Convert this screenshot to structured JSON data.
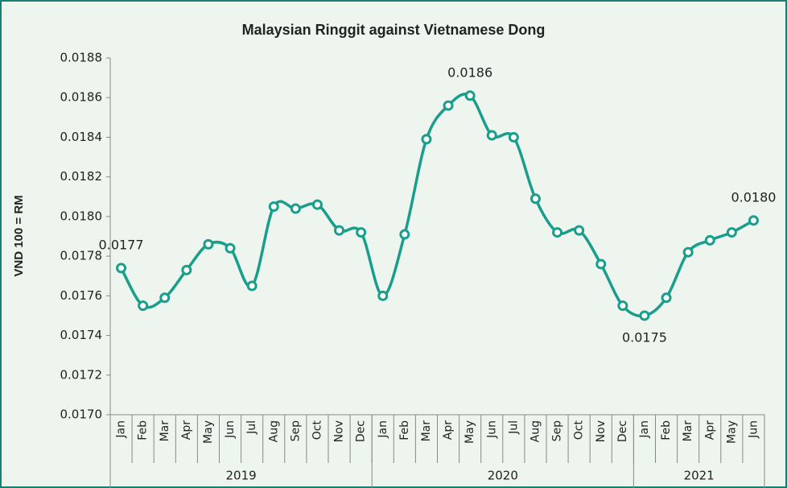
{
  "chart_data": {
    "type": "line",
    "title": "Malaysian Ringgit against Vietnamese Dong",
    "y_label": "VND 100 = RM",
    "groups": [
      {
        "label": "2019",
        "categories": [
          "Jan",
          "Feb",
          "Mar",
          "Apr",
          "May",
          "Jun",
          "Jul",
          "Aug",
          "Sep",
          "Oct",
          "Nov",
          "Dec"
        ]
      },
      {
        "label": "2020",
        "categories": [
          "Jan",
          "Feb",
          "Mar",
          "Apr",
          "May",
          "Jun",
          "Jul",
          "Aug",
          "Sep",
          "Oct",
          "Nov",
          "Dec"
        ]
      },
      {
        "label": "2021",
        "categories": [
          "Jan",
          "Feb",
          "Mar",
          "Apr",
          "May",
          "Jun"
        ]
      }
    ],
    "series": [
      {
        "name": "VND 100 = RM",
        "color": "#1a9e8c",
        "values": [
          0.01774,
          0.01755,
          0.01759,
          0.01773,
          0.01786,
          0.01784,
          0.01765,
          0.01805,
          0.01804,
          0.01806,
          0.01793,
          0.01792,
          0.0176,
          0.01791,
          0.01839,
          0.01856,
          0.01861,
          0.01841,
          0.0184,
          0.01809,
          0.01792,
          0.01793,
          0.01776,
          0.01755,
          0.0175,
          0.01759,
          0.01782,
          0.01788,
          0.01792,
          0.01798
        ],
        "value_labels": [
          "0.0177",
          null,
          null,
          null,
          null,
          null,
          null,
          null,
          null,
          null,
          null,
          null,
          null,
          null,
          null,
          null,
          "0.0186",
          null,
          null,
          null,
          null,
          null,
          null,
          null,
          "0.0175",
          null,
          null,
          null,
          null,
          "0.0180"
        ]
      }
    ],
    "ylim": [
      0.017,
      0.0188
    ],
    "yticks": [
      {
        "value": 0.017,
        "label": "0.0170"
      },
      0.0172,
      0.0174,
      0.0176,
      0.0178,
      {
        "value": 0.018,
        "label": "0.0180"
      },
      0.0182,
      0.0184,
      0.0186,
      0.0188
    ],
    "grid": false
  }
}
